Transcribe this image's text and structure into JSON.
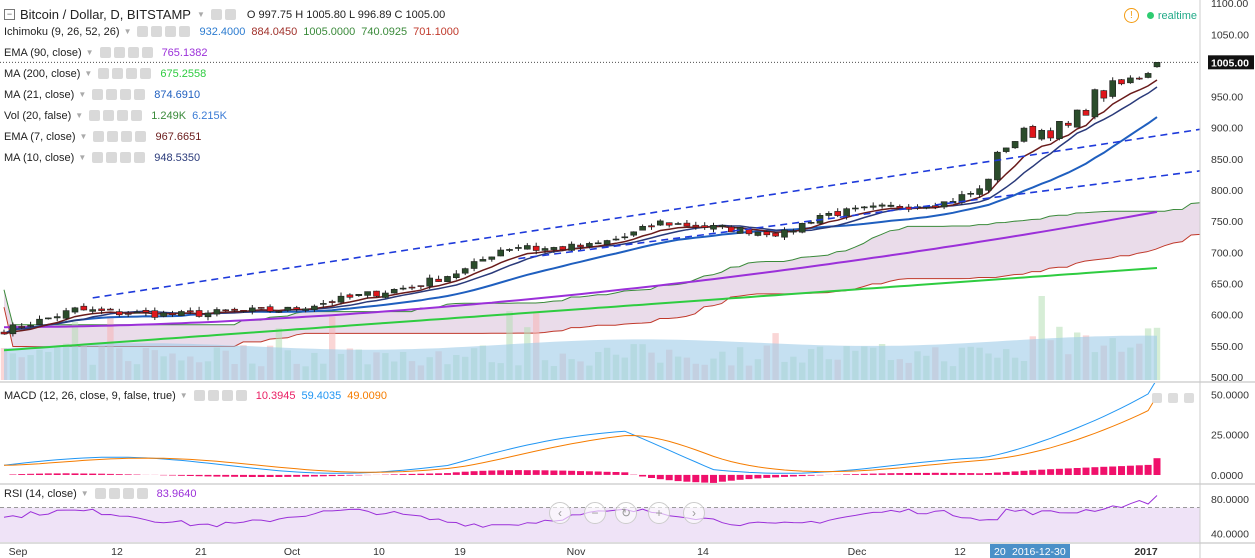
{
  "header": {
    "title": "Bitcoin / Dollar, D, BITSTAMP",
    "ohlc": "O 997.75  H 1005.80  L 996.89  C 1005.00",
    "realtime": "realtime",
    "collapse_icon": "minus-square-icon",
    "warning_icon": "warning-icon"
  },
  "indicators": [
    {
      "name": "ichimoku",
      "label": "Ichimoku (9, 26, 52, 26)",
      "values": [
        {
          "text": "932.4000",
          "color": "#2b7bd0"
        },
        {
          "text": "884.0450",
          "color": "#a0302a"
        },
        {
          "text": "1005.0000",
          "color": "#3a8a3a"
        },
        {
          "text": "740.0925",
          "color": "#3a8a3a"
        },
        {
          "text": "701.1000",
          "color": "#c0392b"
        }
      ]
    },
    {
      "name": "ema90",
      "label": "EMA (90, close)",
      "values": [
        {
          "text": "765.1382",
          "color": "#9b30d9"
        }
      ]
    },
    {
      "name": "ma200",
      "label": "MA (200, close)",
      "values": [
        {
          "text": "675.2558",
          "color": "#2ecc40"
        }
      ]
    },
    {
      "name": "ma21",
      "label": "MA (21, close)",
      "values": [
        {
          "text": "874.6910",
          "color": "#1f5fbf"
        }
      ]
    },
    {
      "name": "vol",
      "label": "Vol (20, false)",
      "values": [
        {
          "text": "1.249K",
          "color": "#3a8a3a"
        },
        {
          "text": "6.215K",
          "color": "#3a7bd5"
        }
      ]
    },
    {
      "name": "ema7",
      "label": "EMA (7, close)",
      "values": [
        {
          "text": "967.6651",
          "color": "#6a1b1b"
        }
      ]
    },
    {
      "name": "ma10",
      "label": "MA (10, close)",
      "values": [
        {
          "text": "948.5350",
          "color": "#2a3a7a"
        }
      ]
    }
  ],
  "macd": {
    "label": "MACD (12, 26, close, 9, false, true)",
    "values": [
      {
        "text": "10.3945",
        "color": "#e91e63"
      },
      {
        "text": "59.4035",
        "color": "#2196f3"
      },
      {
        "text": "49.0090",
        "color": "#f57c00"
      }
    ]
  },
  "rsi": {
    "label": "RSI (14, close)",
    "values": [
      {
        "text": "83.9640",
        "color": "#9b30d9"
      }
    ]
  },
  "nav_icons": [
    "chevron-left-icon",
    "minus-icon",
    "reset-icon",
    "plus-icon",
    "chevron-right-icon"
  ],
  "colors": {
    "up": "#2b4c2b",
    "down": "#e0161b",
    "ma21": "#1f5fbf",
    "ma10": "#2a3a7a",
    "ema7": "#6a1b1b",
    "ema90": "#9b30d9",
    "ma200": "#2ecc40",
    "cloud": "#e3d0e3",
    "macd_hist": "#f0106b",
    "macd_line": "#2196f3",
    "signal": "#f57c00",
    "rsi": "#9b30d9",
    "trend": "#1e3adb"
  },
  "chart_data": {
    "type": "candlestick",
    "x_ticks": [
      "Sep",
      "12",
      "21",
      "Oct",
      "10",
      "19",
      "Nov",
      "14",
      "Dec",
      "12",
      "2017"
    ],
    "crosshair_date": "2016-12-30",
    "crosshair_date_prefix": "20",
    "last_price_label": "1005.00",
    "main": {
      "ylim": [
        492,
        1105
      ],
      "y_ticks": [
        "1100.00",
        "1050.00",
        "1005.00",
        "950.00",
        "900.00",
        "850.00",
        "800.00",
        "750.00",
        "700.00",
        "650.00",
        "600.00",
        "550.00",
        "500.00"
      ],
      "anchors": [
        [
          0,
          575
        ],
        [
          4,
          590
        ],
        [
          8,
          608
        ],
        [
          14,
          602
        ],
        [
          20,
          600
        ],
        [
          26,
          605
        ],
        [
          32,
          608
        ],
        [
          40,
          630
        ],
        [
          46,
          645
        ],
        [
          52,
          672
        ],
        [
          56,
          705
        ],
        [
          59,
          712
        ],
        [
          60,
          705
        ],
        [
          66,
          710
        ],
        [
          70,
          725
        ],
        [
          74,
          748
        ],
        [
          80,
          740
        ],
        [
          88,
          730
        ],
        [
          92,
          760
        ],
        [
          98,
          770
        ],
        [
          106,
          780
        ],
        [
          110,
          800
        ],
        [
          113,
          875
        ],
        [
          116,
          895
        ],
        [
          120,
          900
        ],
        [
          123,
          950
        ],
        [
          127,
          975
        ],
        [
          130,
          1005
        ]
      ],
      "ma200": {
        "x": [
          0,
          130
        ],
        "y": [
          543,
          675
        ]
      },
      "trendline_upper": {
        "x": [
          10,
          130
        ],
        "y": [
          627,
          887
        ]
      },
      "trendline_lower": {
        "x": [
          58,
          130
        ],
        "y": [
          690,
          822
        ]
      }
    },
    "volume": {
      "ylim": [
        0,
        6.0
      ],
      "unit": "K",
      "last": 1.249,
      "avg": 6.215
    },
    "macd": {
      "ylim": [
        -5,
        57
      ],
      "y_ticks": [
        "50.0000",
        "25.0000",
        "0.0000"
      ],
      "macd_end": 59.4035,
      "signal_end": 49.009,
      "hist_end": 10.3945
    },
    "rsi": {
      "ylim": [
        30,
        95
      ],
      "y_ticks": [
        "80.0000",
        "40.0000"
      ],
      "overbought": 70,
      "oversold": 30,
      "last": 83.964
    }
  }
}
